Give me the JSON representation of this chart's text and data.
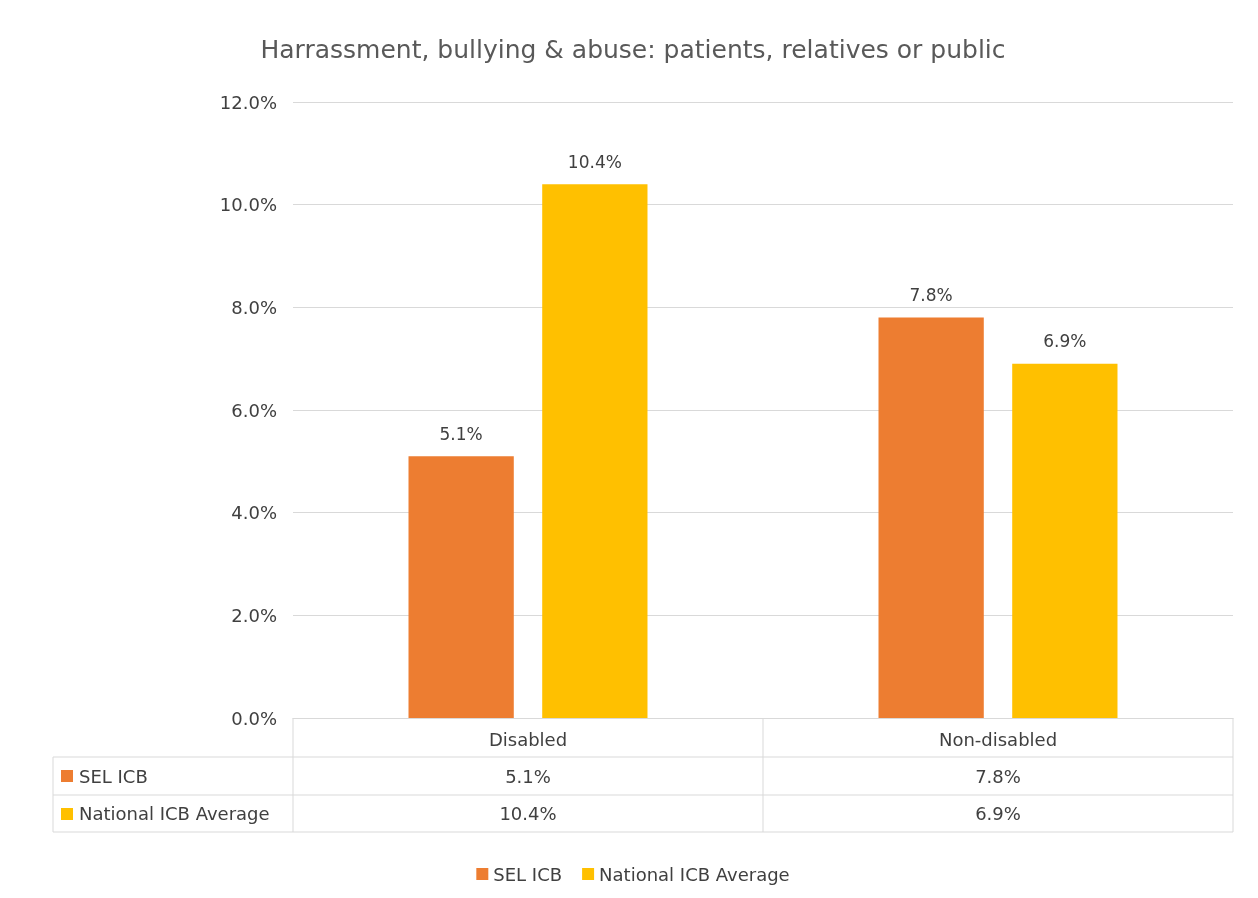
{
  "chart_data": {
    "type": "bar",
    "title": "Harrassment, bullying & abuse: patients, relatives or public",
    "categories": [
      "Disabled",
      "Non-disabled"
    ],
    "series": [
      {
        "name": "SEL ICB",
        "color": "#ed7d31",
        "values": [
          5.1,
          7.8
        ],
        "value_labels": [
          "5.1%",
          "7.8%"
        ]
      },
      {
        "name": "National ICB Average",
        "color": "#ffc000",
        "values": [
          10.4,
          6.9
        ],
        "value_labels": [
          "10.4%",
          "6.9%"
        ]
      }
    ],
    "ylim": [
      0,
      12
    ],
    "yticks": [
      {
        "value": 0,
        "label": "0.0%"
      },
      {
        "value": 2,
        "label": "2.0%"
      },
      {
        "value": 4,
        "label": "4.0%"
      },
      {
        "value": 6,
        "label": "6.0%"
      },
      {
        "value": 8,
        "label": "8.0%"
      },
      {
        "value": 10,
        "label": "10.0%"
      },
      {
        "value": 12,
        "label": "12.0%"
      }
    ],
    "grid": "y",
    "legend": "bottom"
  }
}
